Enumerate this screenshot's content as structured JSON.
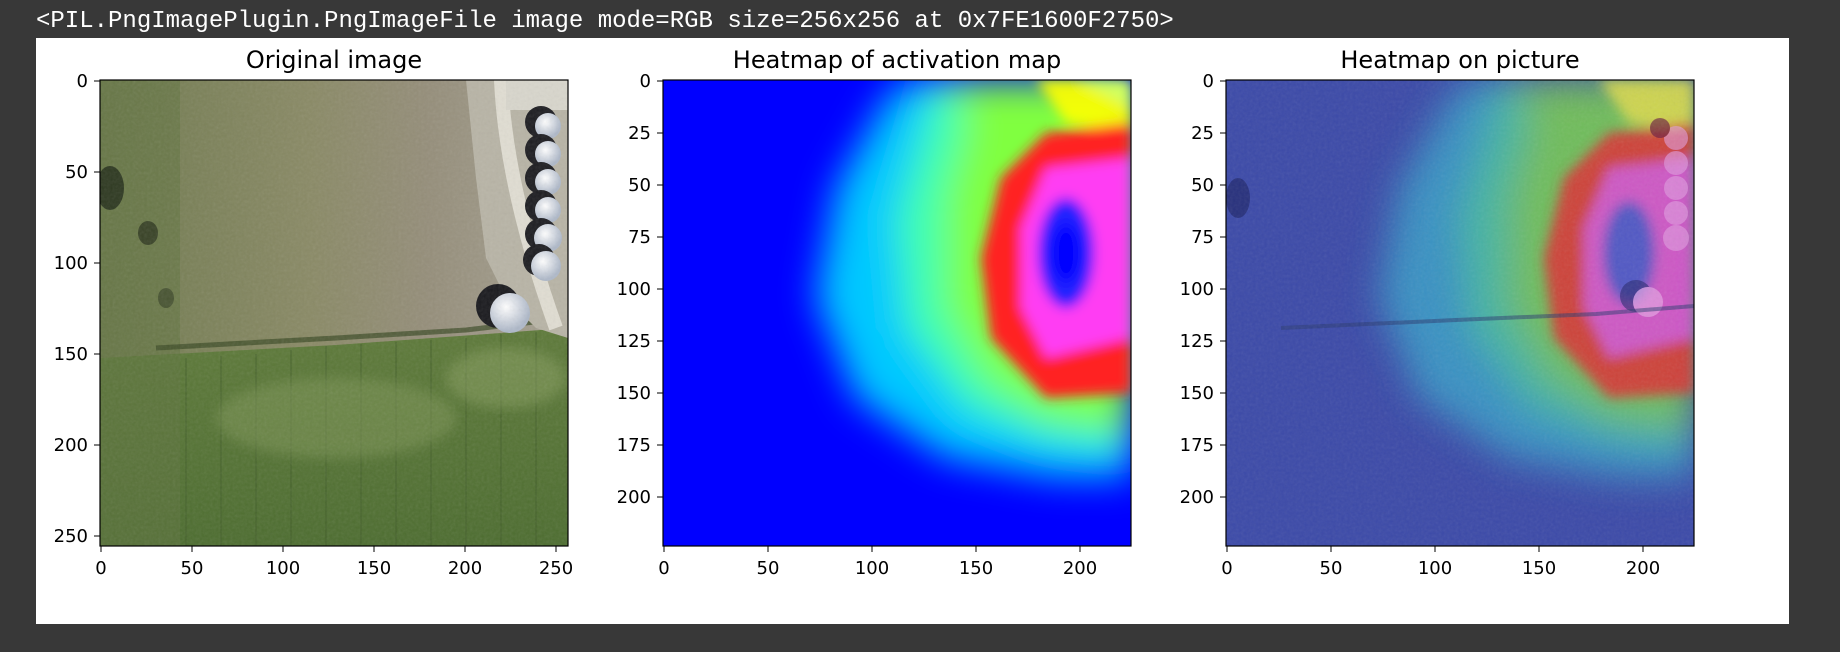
{
  "output_line": "<PIL.PngImagePlugin.PngImageFile image mode=RGB size=256x256 at 0x7FE1600F2750>",
  "panels": [
    {
      "title": "Original image",
      "xlim": [
        0,
        256
      ],
      "ylim": [
        256,
        0
      ],
      "xticks": [
        "0",
        "50",
        "100",
        "150",
        "200",
        "250"
      ],
      "yticks": [
        "0",
        "50",
        "100",
        "150",
        "200",
        "250"
      ],
      "image": "satellite-photo"
    },
    {
      "title": "Heatmap of activation map",
      "xlim": [
        0,
        224
      ],
      "ylim": [
        224,
        0
      ],
      "xticks": [
        "0",
        "50",
        "100",
        "150",
        "200"
      ],
      "yticks": [
        "0",
        "25",
        "50",
        "75",
        "100",
        "125",
        "150",
        "175",
        "200"
      ],
      "image": "jet-heatmap"
    },
    {
      "title": "Heatmap on picture",
      "xlim": [
        0,
        224
      ],
      "ylim": [
        224,
        0
      ],
      "xticks": [
        "0",
        "50",
        "100",
        "150",
        "200"
      ],
      "yticks": [
        "0",
        "25",
        "50",
        "75",
        "100",
        "125",
        "150",
        "175",
        "200"
      ],
      "image": "heatmap-overlay"
    }
  ],
  "colors": {
    "notebook_bg": "#383838",
    "figure_bg": "#ffffff",
    "heat_low": "#0000ff",
    "heat_mid": "#00ff00",
    "heat_high": "#ff0000",
    "heat_peak": "#ff00ff"
  }
}
